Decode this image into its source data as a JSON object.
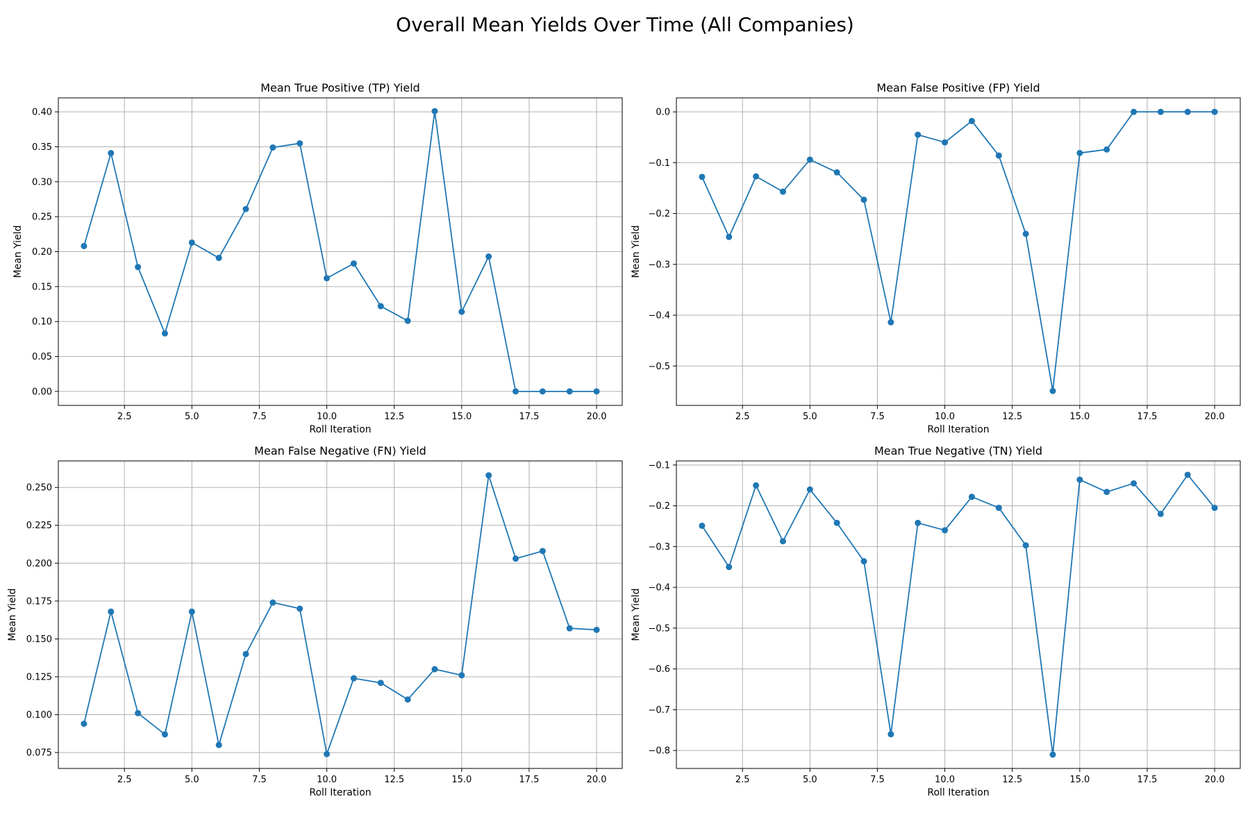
{
  "figure": {
    "suptitle": "Overall Mean Yields Over Time (All Companies)",
    "line_color": "#1f77b4",
    "grid_color": "#b0b0b0"
  },
  "chart_data": [
    {
      "type": "line",
      "title": "Mean True Positive (TP) Yield",
      "xlabel": "Roll Iteration",
      "ylabel": "Mean Yield",
      "xlim": [
        0.05,
        20.95
      ],
      "ylim": [
        -0.02,
        0.42
      ],
      "xticks": [
        2.5,
        5.0,
        7.5,
        10.0,
        12.5,
        15.0,
        17.5,
        20.0
      ],
      "xtick_labels": [
        "2.5",
        "5.0",
        "7.5",
        "10.0",
        "12.5",
        "15.0",
        "17.5",
        "20.0"
      ],
      "yticks": [
        0.0,
        0.05,
        0.1,
        0.15,
        0.2,
        0.25,
        0.3,
        0.35,
        0.4
      ],
      "ytick_labels": [
        "0.00",
        "0.05",
        "0.10",
        "0.15",
        "0.20",
        "0.25",
        "0.30",
        "0.35",
        "0.40"
      ],
      "grid": true,
      "markers": true,
      "x": [
        1,
        2,
        3,
        4,
        5,
        6,
        7,
        8,
        9,
        10,
        11,
        12,
        13,
        14,
        15,
        16,
        17,
        18,
        19,
        20
      ],
      "y": [
        0.208,
        0.341,
        0.178,
        0.083,
        0.213,
        0.191,
        0.261,
        0.349,
        0.355,
        0.162,
        0.183,
        0.122,
        0.101,
        0.401,
        0.114,
        0.193,
        0.0,
        0.0,
        0.0,
        0.0
      ]
    },
    {
      "type": "line",
      "title": "Mean False Positive (FP) Yield",
      "xlabel": "Roll Iteration",
      "ylabel": "Mean Yield",
      "xlim": [
        0.05,
        20.95
      ],
      "ylim": [
        -0.5775,
        0.0275
      ],
      "xticks": [
        2.5,
        5.0,
        7.5,
        10.0,
        12.5,
        15.0,
        17.5,
        20.0
      ],
      "xtick_labels": [
        "2.5",
        "5.0",
        "7.5",
        "10.0",
        "12.5",
        "15.0",
        "17.5",
        "20.0"
      ],
      "yticks": [
        0.0,
        -0.1,
        -0.2,
        -0.3,
        -0.4,
        -0.5
      ],
      "ytick_labels": [
        "0.0",
        "−0.1",
        "−0.2",
        "−0.3",
        "−0.4",
        "−0.5"
      ],
      "grid": true,
      "markers": true,
      "x": [
        1,
        2,
        3,
        4,
        5,
        6,
        7,
        8,
        9,
        10,
        11,
        12,
        13,
        14,
        15,
        16,
        17,
        18,
        19,
        20
      ],
      "y": [
        -0.128,
        -0.246,
        -0.127,
        -0.157,
        -0.094,
        -0.119,
        -0.173,
        -0.414,
        -0.045,
        -0.06,
        -0.018,
        -0.086,
        -0.24,
        -0.549,
        -0.081,
        -0.074,
        0.0,
        0.0,
        0.0,
        0.0
      ]
    },
    {
      "type": "line",
      "title": "Mean False Negative (FN) Yield",
      "xlabel": "Roll Iteration",
      "ylabel": "Mean Yield",
      "xlim": [
        0.05,
        20.95
      ],
      "ylim": [
        0.0645,
        0.2675
      ],
      "xticks": [
        2.5,
        5.0,
        7.5,
        10.0,
        12.5,
        15.0,
        17.5,
        20.0
      ],
      "xtick_labels": [
        "2.5",
        "5.0",
        "7.5",
        "10.0",
        "12.5",
        "15.0",
        "17.5",
        "20.0"
      ],
      "yticks": [
        0.075,
        0.1,
        0.125,
        0.15,
        0.175,
        0.2,
        0.225,
        0.25
      ],
      "ytick_labels": [
        "0.075",
        "0.100",
        "0.125",
        "0.150",
        "0.175",
        "0.200",
        "0.225",
        "0.250"
      ],
      "grid": true,
      "markers": true,
      "x": [
        1,
        2,
        3,
        4,
        5,
        6,
        7,
        8,
        9,
        10,
        11,
        12,
        13,
        14,
        15,
        16,
        17,
        18,
        19,
        20
      ],
      "y": [
        0.094,
        0.168,
        0.101,
        0.087,
        0.168,
        0.08,
        0.14,
        0.174,
        0.17,
        0.074,
        0.124,
        0.121,
        0.11,
        0.13,
        0.126,
        0.258,
        0.203,
        0.208,
        0.157,
        0.156
      ]
    },
    {
      "type": "line",
      "title": "Mean True Negative (TN) Yield",
      "xlabel": "Roll Iteration",
      "ylabel": "Mean Yield",
      "xlim": [
        0.05,
        20.95
      ],
      "ylim": [
        -0.844,
        -0.09
      ],
      "xticks": [
        2.5,
        5.0,
        7.5,
        10.0,
        12.5,
        15.0,
        17.5,
        20.0
      ],
      "xtick_labels": [
        "2.5",
        "5.0",
        "7.5",
        "10.0",
        "12.5",
        "15.0",
        "17.5",
        "20.0"
      ],
      "yticks": [
        -0.1,
        -0.2,
        -0.3,
        -0.4,
        -0.5,
        -0.6,
        -0.7,
        -0.8
      ],
      "ytick_labels": [
        "−0.1",
        "−0.2",
        "−0.3",
        "−0.4",
        "−0.5",
        "−0.6",
        "−0.7",
        "−0.8"
      ],
      "grid": true,
      "markers": true,
      "x": [
        1,
        2,
        3,
        4,
        5,
        6,
        7,
        8,
        9,
        10,
        11,
        12,
        13,
        14,
        15,
        16,
        17,
        18,
        19,
        20
      ],
      "y": [
        -0.249,
        -0.35,
        -0.15,
        -0.287,
        -0.16,
        -0.242,
        -0.336,
        -0.76,
        -0.242,
        -0.26,
        -0.178,
        -0.205,
        -0.297,
        -0.81,
        -0.136,
        -0.166,
        -0.145,
        -0.22,
        -0.124,
        -0.205
      ]
    }
  ]
}
